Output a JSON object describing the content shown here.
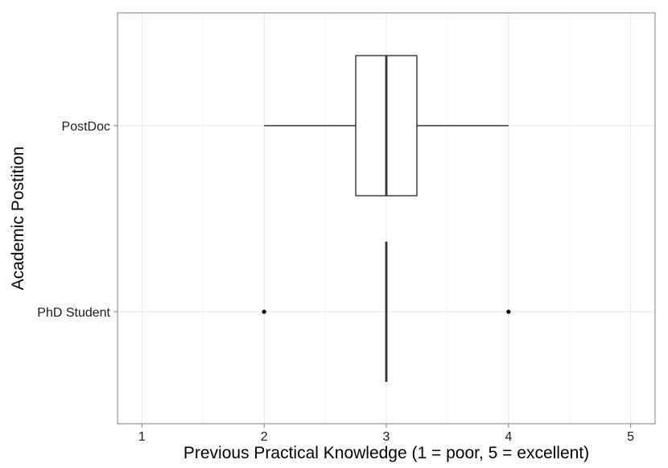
{
  "chart_data": {
    "type": "boxplot",
    "orientation": "horizontal",
    "xlabel": "Previous Practical Knowledge (1 = poor, 5 = excellent)",
    "ylabel": "Academic Postition",
    "x_ticks": [
      1,
      2,
      3,
      4,
      5
    ],
    "xlim": [
      0.8,
      5.2
    ],
    "grid": true,
    "categories": [
      "PostDoc",
      "PhD Student"
    ],
    "boxes": [
      {
        "category": "PostDoc",
        "whisker_low": 2,
        "q1": 2.75,
        "median": 3,
        "q3": 3.25,
        "whisker_high": 4,
        "outliers": []
      },
      {
        "category": "PhD Student",
        "whisker_low": 3,
        "q1": 3,
        "median": 3,
        "q3": 3,
        "whisker_high": 3,
        "outliers": [
          2,
          4
        ]
      }
    ]
  }
}
